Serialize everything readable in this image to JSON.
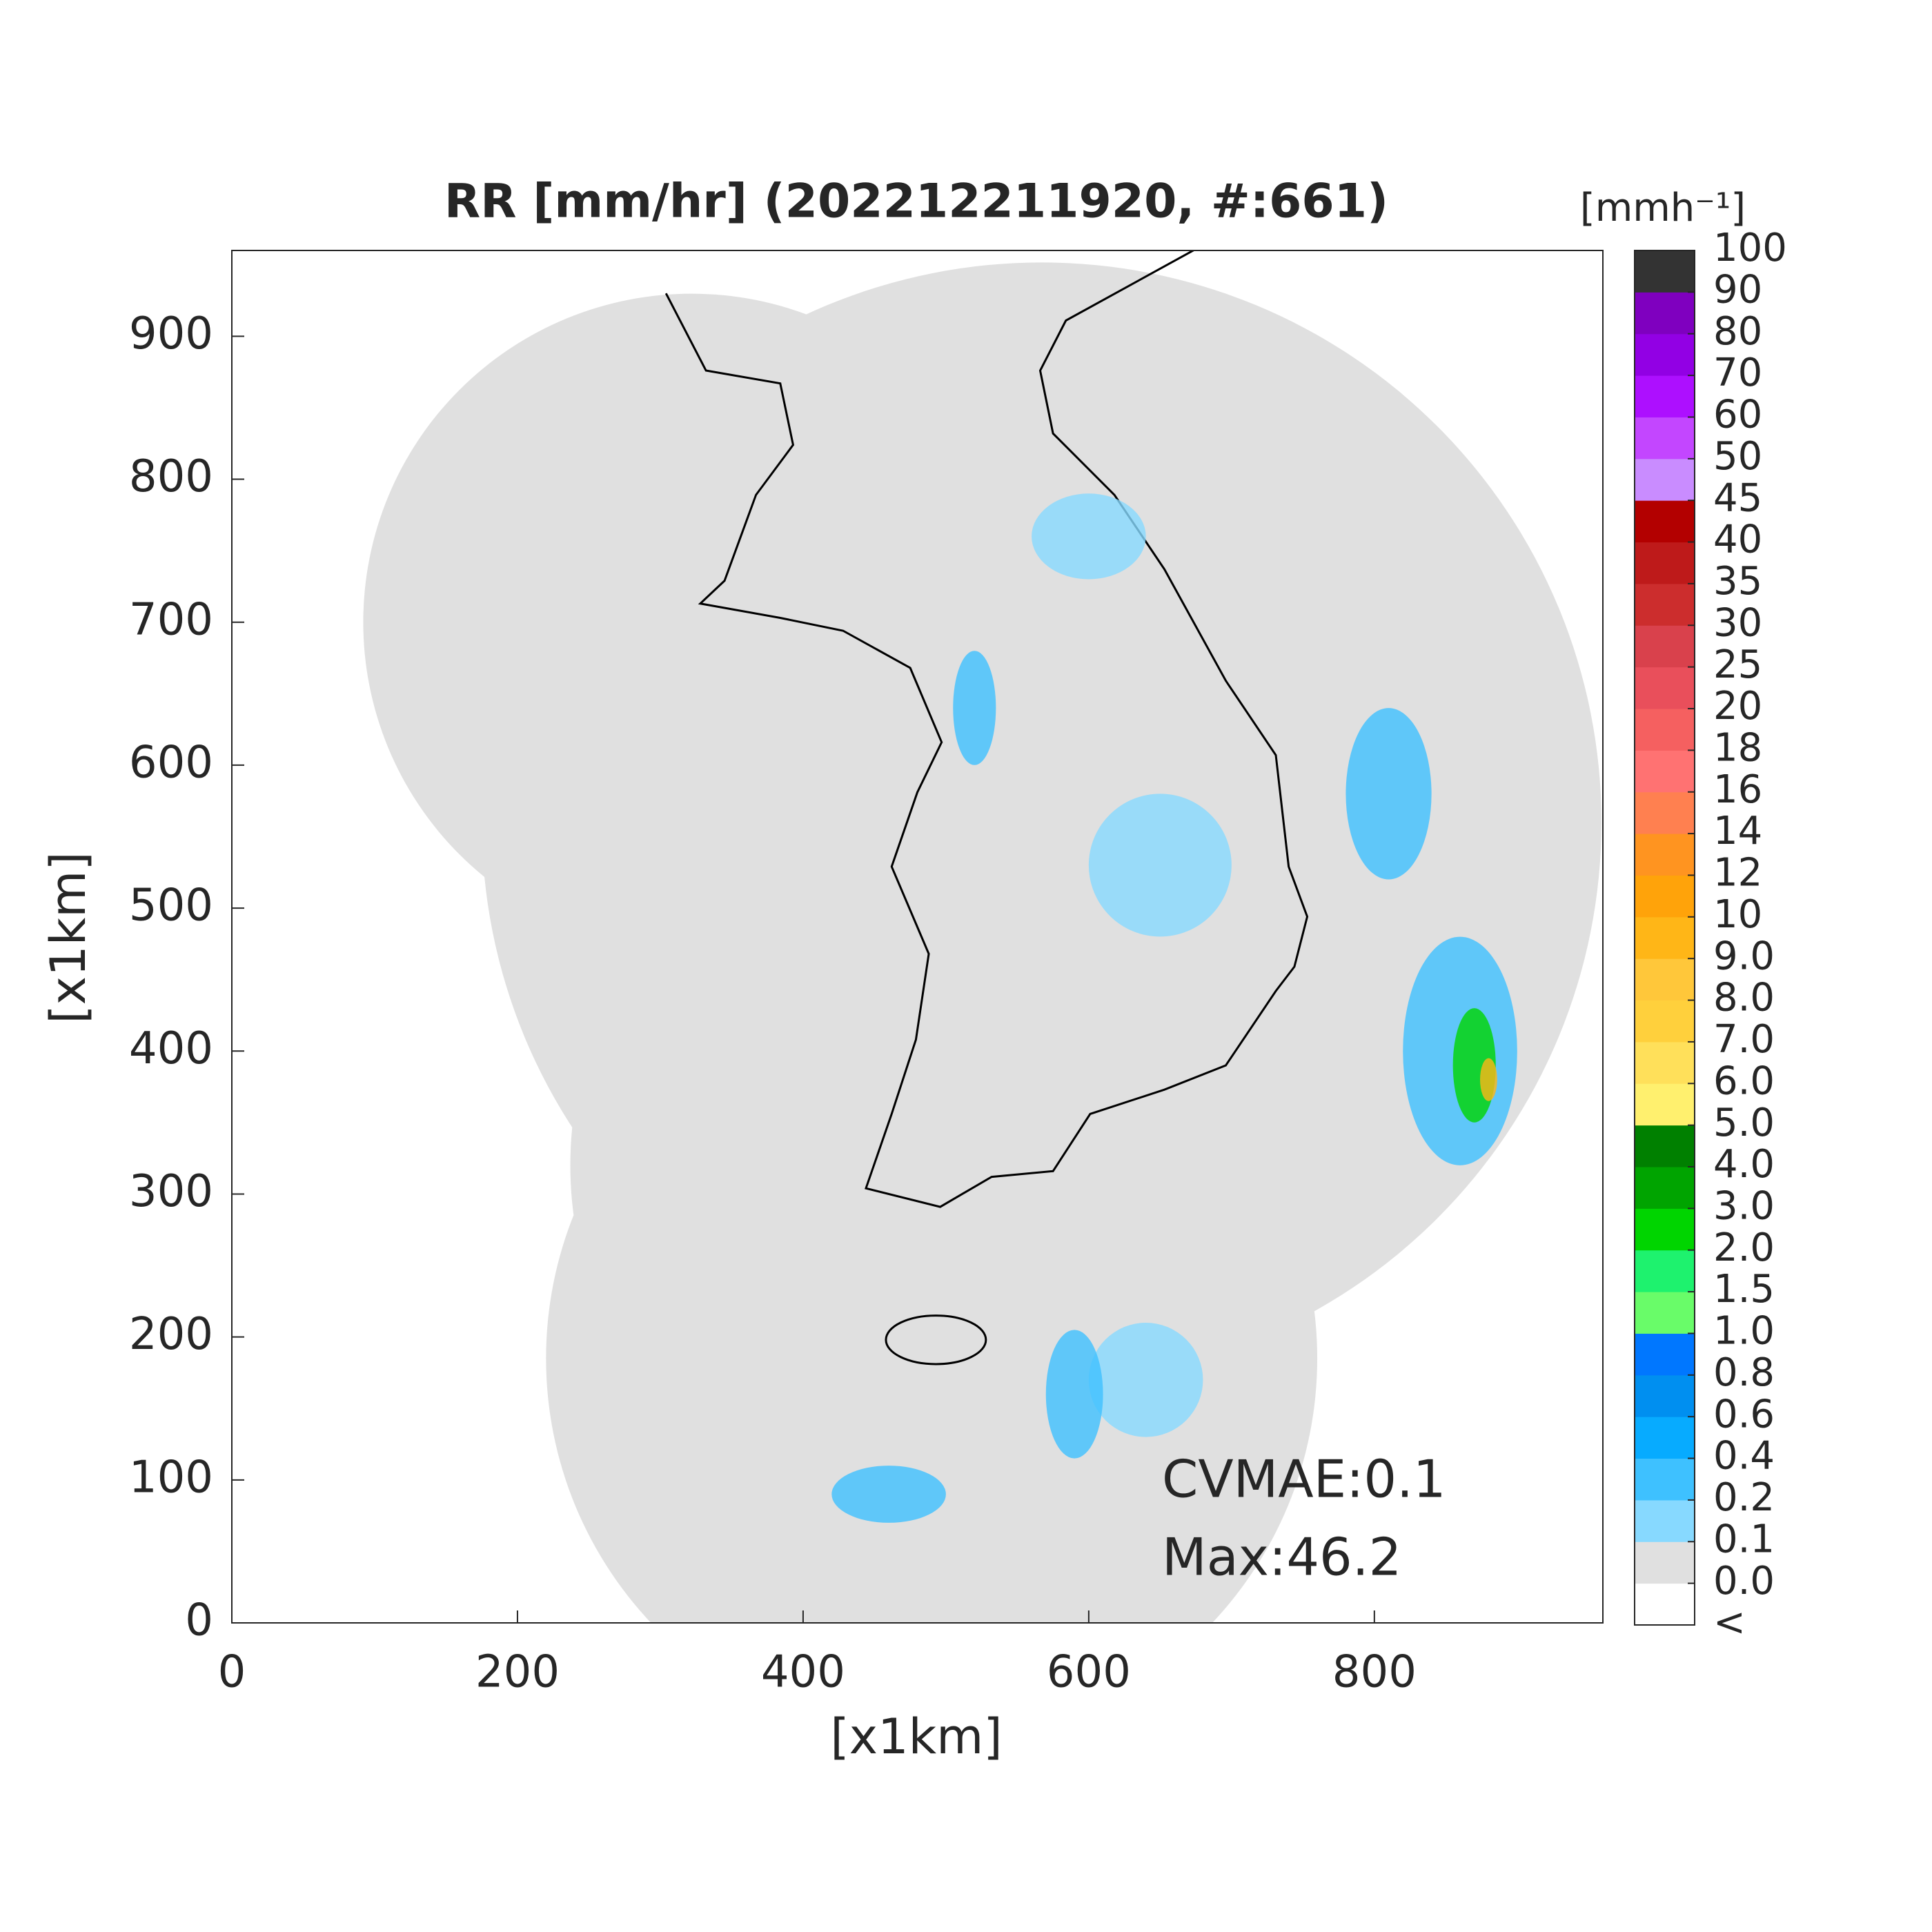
{
  "chart_data": {
    "type": "map",
    "title": "RR [mm/hr] (202212211920, #:661)",
    "xlabel": "[x1km]",
    "ylabel": "[x1km]",
    "xlim": [
      0,
      960
    ],
    "ylim": [
      0,
      960
    ],
    "xticks": [
      0,
      200,
      400,
      600,
      800
    ],
    "yticks": [
      0,
      100,
      200,
      300,
      400,
      500,
      600,
      700,
      800,
      900
    ],
    "annotations": [
      "CVMAE:0.1",
      "Max:46.2"
    ],
    "coverage_color": "#e0e0e0",
    "colorbar": {
      "label": "[mmh⁻¹]",
      "under_label": "<",
      "under_color": "#ffffff",
      "ticks": [
        {
          "value": 0,
          "label": "0.0"
        },
        0.1,
        0.2,
        0.4,
        0.6,
        0.8,
        {
          "value": 1,
          "label": "1.0"
        },
        1.5,
        {
          "value": 2,
          "label": "2.0"
        },
        {
          "value": 3,
          "label": "3.0"
        },
        {
          "value": 4,
          "label": "4.0"
        },
        {
          "value": 5,
          "label": "5.0"
        },
        {
          "value": 6,
          "label": "6.0"
        },
        {
          "value": 7,
          "label": "7.0"
        },
        {
          "value": 8,
          "label": "8.0"
        },
        {
          "value": 9,
          "label": "9.0"
        },
        10,
        12,
        14,
        16,
        18,
        20,
        25,
        30,
        35,
        40,
        45,
        50,
        60,
        70,
        80,
        90,
        100
      ],
      "colors": [
        "#e0e0e0",
        "#87d9ff",
        "#3ec1ff",
        "#07abff",
        "#008ff0",
        "#0077ff",
        "#69fc69",
        "#1ef26e",
        "#00d500",
        "#00a400",
        "#008000",
        "#fff06e",
        "#ffe05a",
        "#ffd03c",
        "#ffc73a",
        "#ffb617",
        "#ffa30a",
        "#ff9420",
        "#ff8050",
        "#ff7272",
        "#f56060",
        "#e94f5b",
        "#d9414c",
        "#cc2d2d",
        "#be1a1a",
        "#b30000",
        "#c98cff",
        "#c346ff",
        "#ad0fff",
        "#9200e4",
        "#7f00bf",
        "#333333"
      ]
    }
  }
}
